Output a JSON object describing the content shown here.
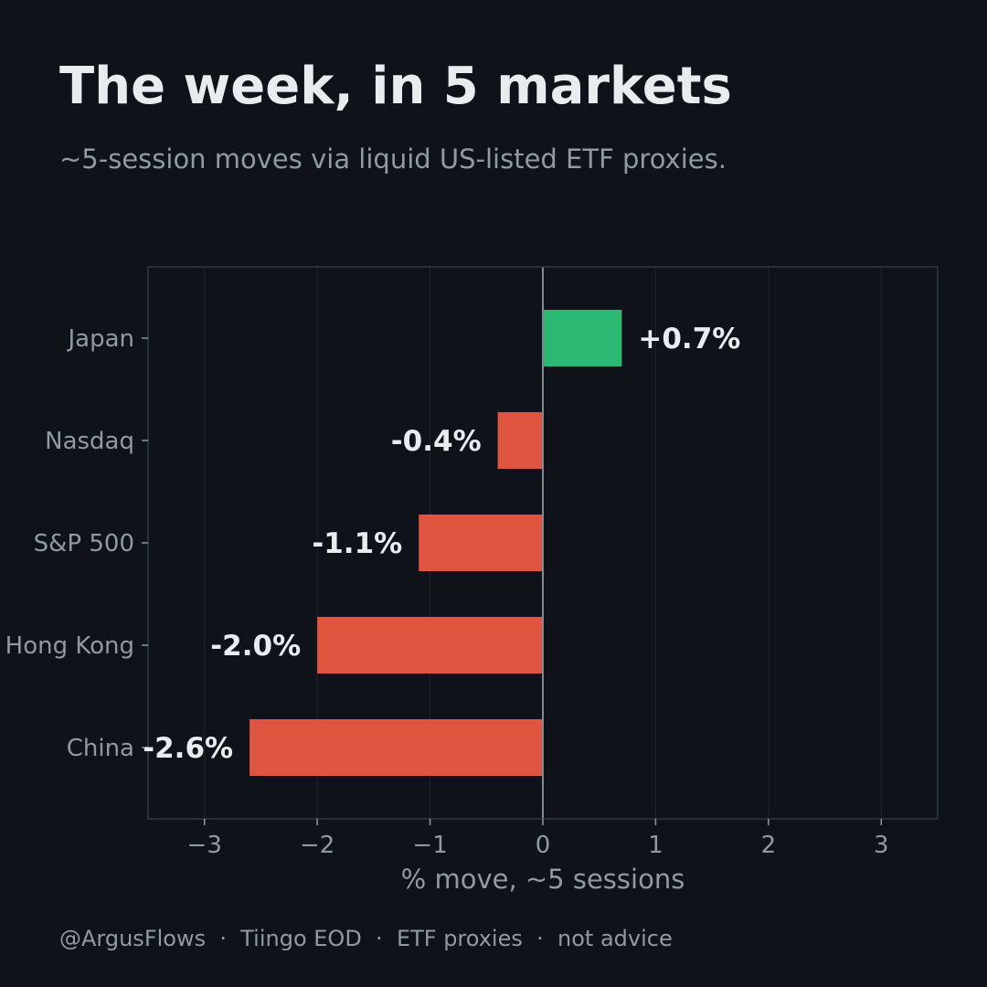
{
  "header": {
    "title": "The week, in 5 markets",
    "subtitle": "~5-session moves via liquid US-listed ETF proxies."
  },
  "footer": {
    "parts": [
      "@ArgusFlows",
      "Tiingo EOD",
      "ETF proxies",
      "not advice"
    ],
    "separator": "  ·  "
  },
  "colors": {
    "background": "#0f1319",
    "positive": "#2bb873",
    "negative": "#e0553f",
    "text": "#e9ecef",
    "muted": "#8f9aa3",
    "frame": "#2f3a40",
    "gridline": "#1f262c",
    "zero_line": "#7f8a93"
  },
  "chart_data": {
    "type": "bar",
    "orientation": "horizontal",
    "categories": [
      "Japan",
      "Nasdaq",
      "S&P 500",
      "Hong Kong",
      "China"
    ],
    "values": [
      0.7,
      -0.4,
      -1.1,
      -2.0,
      -2.6
    ],
    "data_labels": [
      "+0.7%",
      "-0.4%",
      "-1.1%",
      "-2.0%",
      "-2.6%"
    ],
    "xlabel": "% move, ~5 sessions",
    "xlim": [
      -3.5,
      3.5
    ],
    "xticks": [
      -3,
      -2,
      -1,
      0,
      1,
      2,
      3
    ],
    "xtick_labels": [
      "−3",
      "−2",
      "−1",
      "0",
      "1",
      "2",
      "3"
    ],
    "grid": true,
    "legend": false
  }
}
